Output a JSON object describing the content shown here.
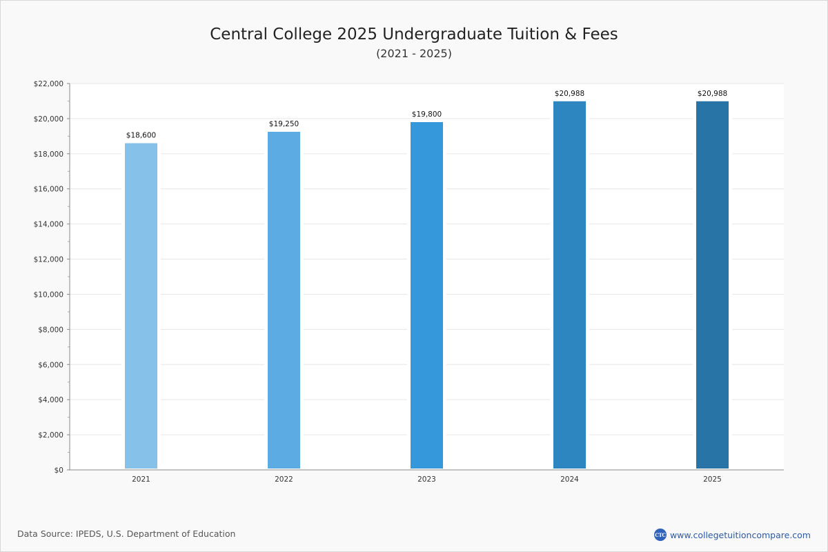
{
  "chart_data": {
    "type": "bar",
    "title": "Central College 2025 Undergraduate Tuition & Fees",
    "subtitle": "(2021 - 2025)",
    "xlabel": "",
    "ylabel": "",
    "categories": [
      "2021",
      "2022",
      "2023",
      "2024",
      "2025"
    ],
    "values": [
      18600,
      19250,
      19800,
      20988,
      20988
    ],
    "data_labels": [
      "$18,600",
      "$19,250",
      "$19,800",
      "$20,988",
      "$20,988"
    ],
    "ylim": [
      0,
      22000
    ],
    "yticks": [
      0,
      2000,
      4000,
      6000,
      8000,
      10000,
      12000,
      14000,
      16000,
      18000,
      20000,
      22000
    ],
    "ytick_labels": [
      "$0",
      "$2,000",
      "$4,000",
      "$6,000",
      "$8,000",
      "$10,000",
      "$12,000",
      "$14,000",
      "$16,000",
      "$18,000",
      "$20,000",
      "$22,000"
    ],
    "bar_colors": [
      "#86c1ea",
      "#5dabe3",
      "#3598db",
      "#2e86c1",
      "#2874a6"
    ],
    "grid": true,
    "legend": "none"
  },
  "footer": {
    "source": "Data Source: IPEDS, U.S. Department of Education",
    "logo_text": "CTC",
    "site": "www.collegetuitioncompare.com"
  }
}
